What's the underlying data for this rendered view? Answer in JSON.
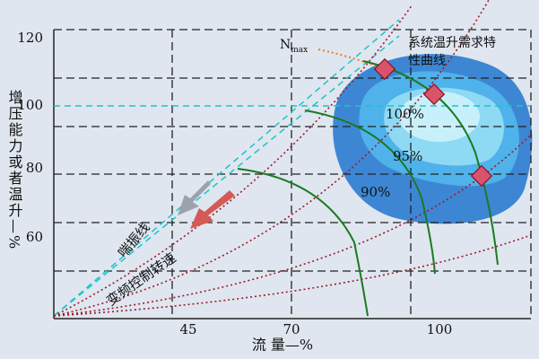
{
  "x_axis": {
    "label": "流 量—%",
    "ticks": [
      "45",
      "70",
      "100"
    ]
  },
  "y_axis": {
    "label": "增压能力或者温升—%",
    "ticks": [
      "120",
      "100",
      "80",
      "60"
    ]
  },
  "annotations": {
    "nmax": "N",
    "nmax_sub": "max",
    "system_curve": [
      "系统温升需求特",
      "性曲线"
    ],
    "efficiency": [
      "100%",
      "95%",
      "90%"
    ],
    "surge_line": "喘振线",
    "vfd_speed": "变频控制转速"
  }
}
